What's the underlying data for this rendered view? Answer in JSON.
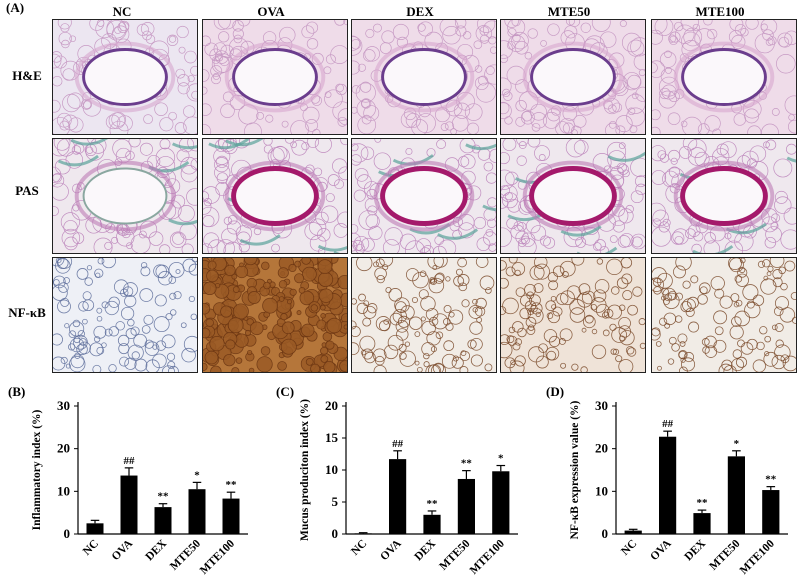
{
  "panel_a": {
    "letter": "(A)",
    "columns": [
      "NC",
      "OVA",
      "DEX",
      "MTE50",
      "MTE100"
    ],
    "rows": [
      "H&E",
      "PAS",
      "NF-κB"
    ]
  },
  "chart_data": [
    {
      "letter": "(B)",
      "type": "bar",
      "categories": [
        "NC",
        "OVA",
        "DEX",
        "MTE50",
        "MTE100"
      ],
      "values": [
        2.5,
        13.7,
        6.3,
        10.5,
        8.3
      ],
      "errors": [
        0.7,
        1.8,
        0.8,
        1.6,
        1.5
      ],
      "annotations": [
        "",
        "##",
        "**",
        "*",
        "**"
      ],
      "ylabel": "Inflammatory index (%)",
      "ylim": [
        0,
        30
      ],
      "yticks": [
        0,
        10,
        20,
        30
      ]
    },
    {
      "letter": "(C)",
      "type": "bar",
      "categories": [
        "NC",
        "OVA",
        "DEX",
        "MTE50",
        "MTE100"
      ],
      "values": [
        0.1,
        11.7,
        3.0,
        8.6,
        9.8
      ],
      "errors": [
        0.1,
        1.3,
        0.6,
        1.3,
        0.9
      ],
      "annotations": [
        "",
        "##",
        "**",
        "**",
        "*"
      ],
      "ylabel": "Mucus produciton index (%)",
      "ylim": [
        0,
        20
      ],
      "yticks": [
        0,
        5,
        10,
        15,
        20
      ]
    },
    {
      "letter": "(D)",
      "type": "bar",
      "categories": [
        "NC",
        "OVA",
        "DEX",
        "MTE50",
        "MTE100"
      ],
      "values": [
        0.8,
        22.8,
        4.9,
        18.2,
        10.3
      ],
      "errors": [
        0.3,
        1.3,
        0.7,
        1.3,
        0.8
      ],
      "annotations": [
        "",
        "##",
        "**",
        "*",
        "**"
      ],
      "ylabel": "NF-κB expression value (%)",
      "ylim": [
        0,
        30
      ],
      "yticks": [
        0,
        10,
        20,
        30
      ]
    }
  ]
}
